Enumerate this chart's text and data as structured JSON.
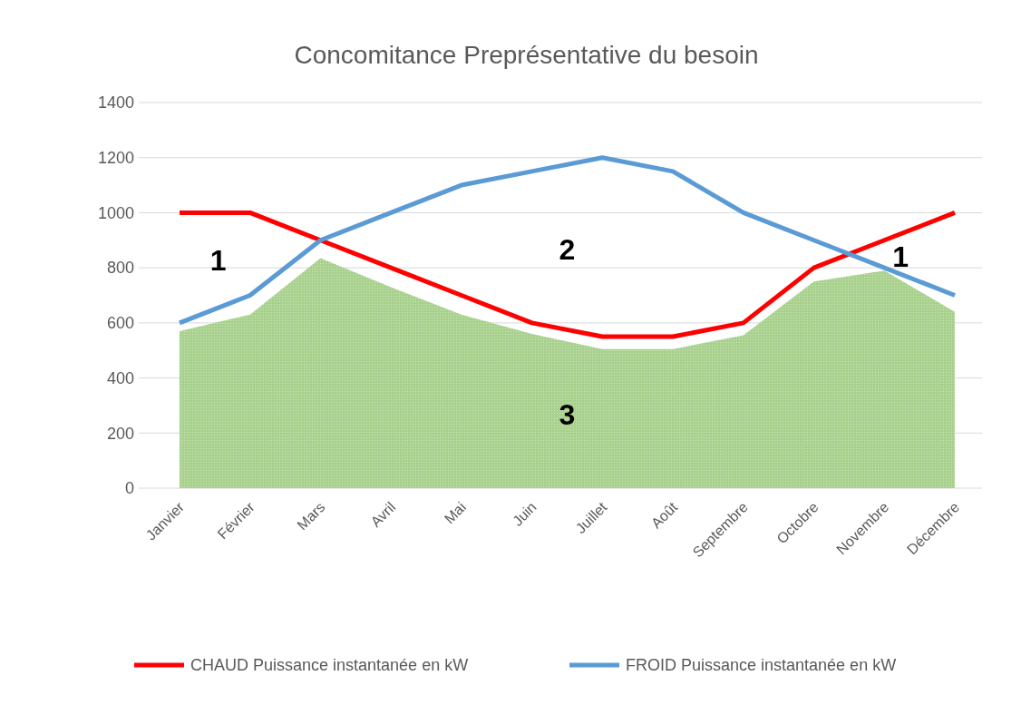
{
  "chart_data": {
    "type": "line",
    "title": "Concomitance Preprésentative du besoin",
    "categories": [
      "Janvier",
      "Février",
      "Mars",
      "Avril",
      "Mai",
      "Juin",
      "Juillet",
      "Août",
      "Septembre",
      "Octobre",
      "Novembre",
      "Décembre"
    ],
    "series": [
      {
        "type": "area",
        "color": "#a9d18e",
        "values": [
          570,
          630,
          835,
          730,
          630,
          560,
          505,
          505,
          555,
          750,
          790,
          640
        ]
      },
      {
        "name": "CHAUD Puissance instantanée en kW",
        "color": "#ff0000",
        "values": [
          1000,
          1000,
          900,
          800,
          700,
          600,
          550,
          550,
          600,
          800,
          900,
          1000
        ]
      },
      {
        "name": "FROID Puissance instantanée en kW",
        "color": "#5b9bd5",
        "values": [
          600,
          700,
          900,
          1000,
          1100,
          1150,
          1200,
          1150,
          1000,
          900,
          800,
          700
        ]
      }
    ],
    "ylim": [
      0,
      1400
    ],
    "yticks": [
      0,
      200,
      400,
      600,
      800,
      1000,
      1200,
      1400
    ],
    "grid": "y",
    "legend": "bottom",
    "marker": "none",
    "annotations": [
      "1",
      "2",
      "1",
      "3"
    ]
  }
}
